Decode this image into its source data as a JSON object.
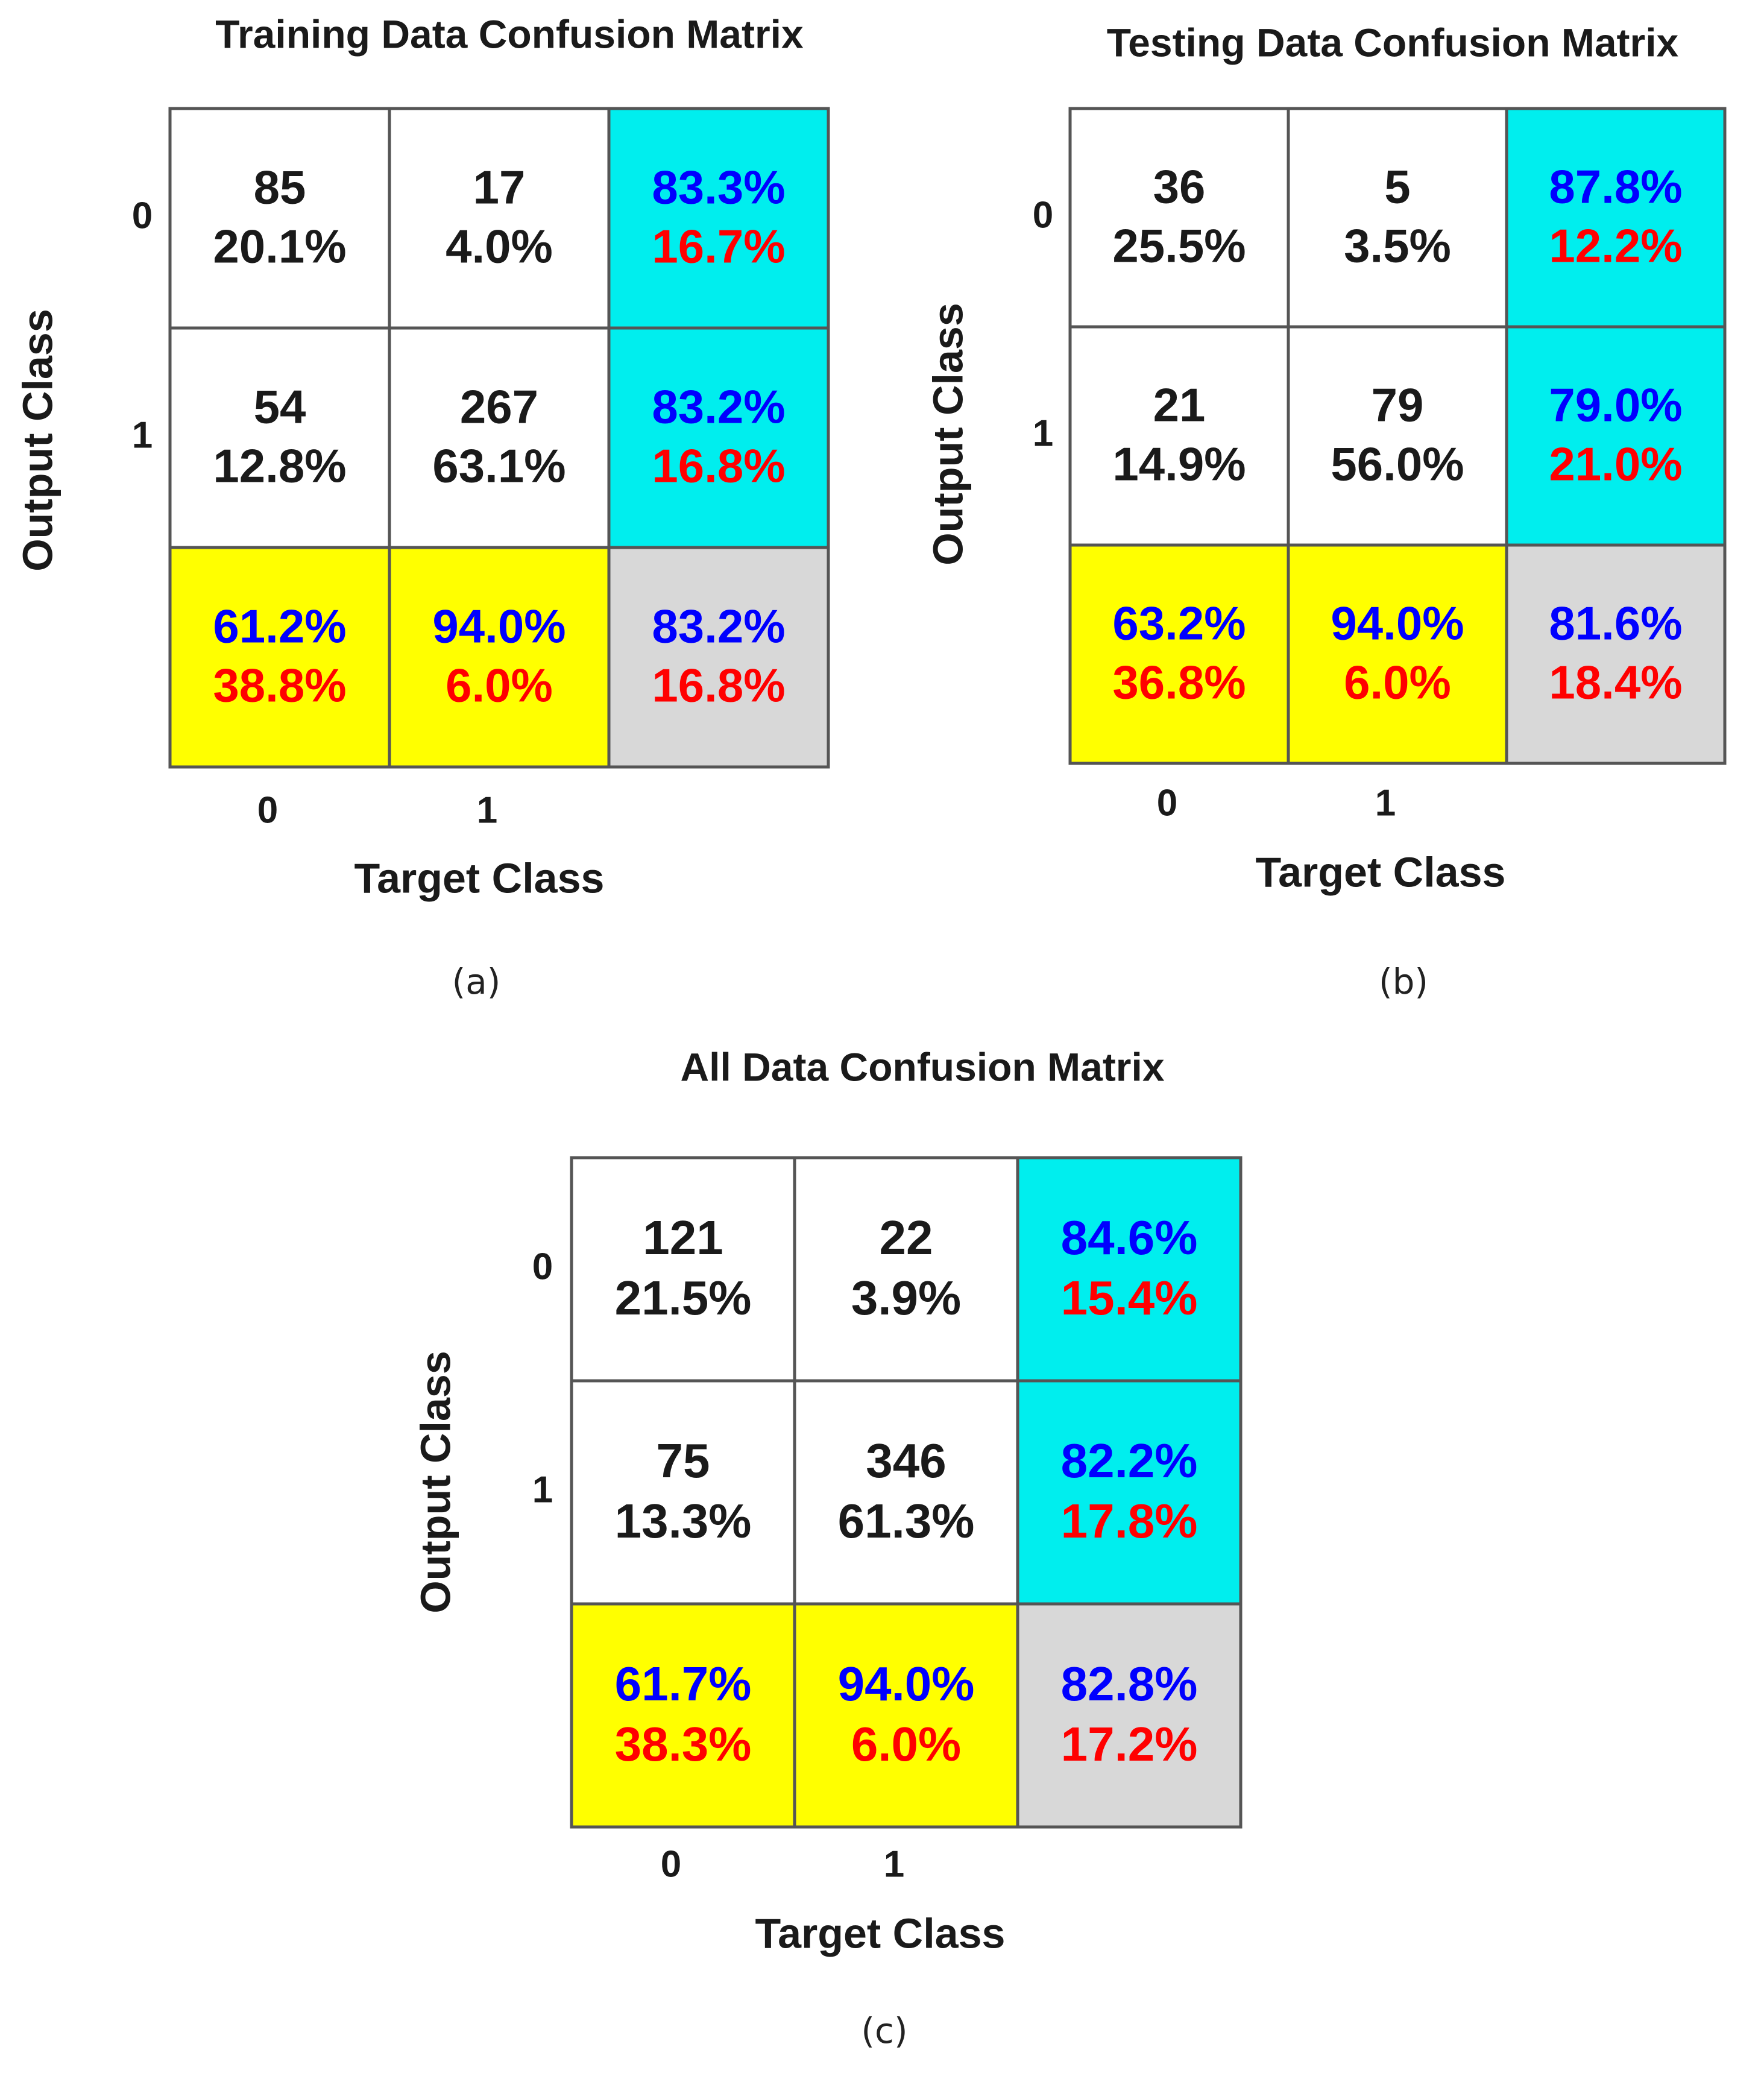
{
  "colors": {
    "correct": "#0000ff",
    "wrong": "#ff0000",
    "count": "#1a1a1a",
    "row_summary_fill": "#00eeee",
    "col_summary_fill": "#ffff00",
    "overall_fill": "#d8d8d8",
    "cell_fill": "#ffffff",
    "grid_line": "#555555"
  },
  "chart_data": [
    {
      "type": "table",
      "subtype": "confusion_matrix",
      "panel": "(a)",
      "title": "Training Data Confusion Matrix",
      "xlabel": "Target Class",
      "ylabel": "Output Class",
      "x_ticks": [
        "0",
        "1"
      ],
      "y_ticks": [
        "0",
        "1"
      ],
      "cells": [
        [
          {
            "count": "85",
            "percent": "20.1%"
          },
          {
            "count": "17",
            "percent": "4.0%"
          }
        ],
        [
          {
            "count": "54",
            "percent": "12.8%"
          },
          {
            "count": "267",
            "percent": "63.1%"
          }
        ]
      ],
      "row_summary": [
        {
          "correct": "83.3%",
          "wrong": "16.7%"
        },
        {
          "correct": "83.2%",
          "wrong": "16.8%"
        }
      ],
      "col_summary": [
        {
          "correct": "61.2%",
          "wrong": "38.8%"
        },
        {
          "correct": "94.0%",
          "wrong": "6.0%"
        }
      ],
      "overall": {
        "correct": "83.2%",
        "wrong": "16.8%"
      }
    },
    {
      "type": "table",
      "subtype": "confusion_matrix",
      "panel": "(b)",
      "title": "Testing Data Confusion Matrix",
      "xlabel": "Target Class",
      "ylabel": "Output Class",
      "x_ticks": [
        "0",
        "1"
      ],
      "y_ticks": [
        "0",
        "1"
      ],
      "cells": [
        [
          {
            "count": "36",
            "percent": "25.5%"
          },
          {
            "count": "5",
            "percent": "3.5%"
          }
        ],
        [
          {
            "count": "21",
            "percent": "14.9%"
          },
          {
            "count": "79",
            "percent": "56.0%"
          }
        ]
      ],
      "row_summary": [
        {
          "correct": "87.8%",
          "wrong": "12.2%"
        },
        {
          "correct": "79.0%",
          "wrong": "21.0%"
        }
      ],
      "col_summary": [
        {
          "correct": "63.2%",
          "wrong": "36.8%"
        },
        {
          "correct": "94.0%",
          "wrong": "6.0%"
        }
      ],
      "overall": {
        "correct": "81.6%",
        "wrong": "18.4%"
      }
    },
    {
      "type": "table",
      "subtype": "confusion_matrix",
      "panel": "(c)",
      "title": "All Data Confusion Matrix",
      "xlabel": "Target Class",
      "ylabel": "Output Class",
      "x_ticks": [
        "0",
        "1"
      ],
      "y_ticks": [
        "0",
        "1"
      ],
      "cells": [
        [
          {
            "count": "121",
            "percent": "21.5%"
          },
          {
            "count": "22",
            "percent": "3.9%"
          }
        ],
        [
          {
            "count": "75",
            "percent": "13.3%"
          },
          {
            "count": "346",
            "percent": "61.3%"
          }
        ]
      ],
      "row_summary": [
        {
          "correct": "84.6%",
          "wrong": "15.4%"
        },
        {
          "correct": "82.2%",
          "wrong": "17.8%"
        }
      ],
      "col_summary": [
        {
          "correct": "61.7%",
          "wrong": "38.3%"
        },
        {
          "correct": "94.0%",
          "wrong": "6.0%"
        }
      ],
      "overall": {
        "correct": "82.8%",
        "wrong": "17.2%"
      }
    }
  ]
}
